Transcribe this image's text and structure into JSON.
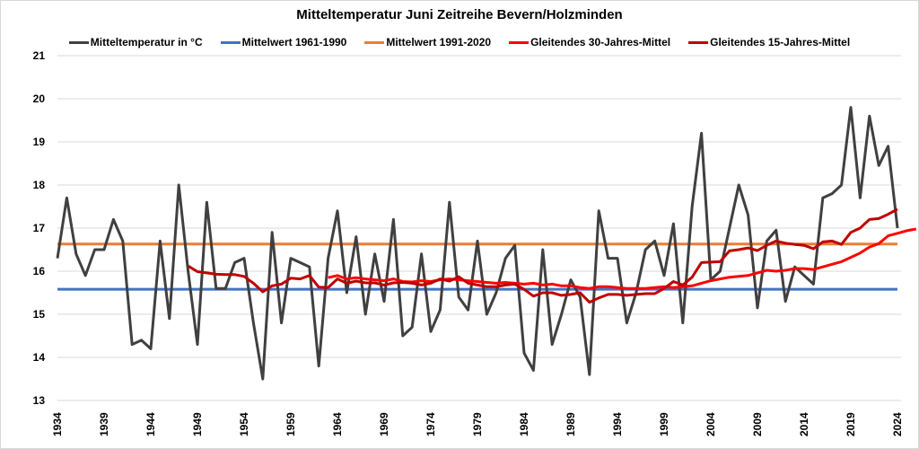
{
  "chart_data": {
    "type": "line",
    "title": "Mitteltemperatur Juni Zeitreihe Bevern/Holzminden",
    "xlabel": "",
    "ylabel": "",
    "ylim": [
      13,
      21
    ],
    "xlim": [
      1934,
      2024
    ],
    "y_ticks": [
      13,
      14,
      15,
      16,
      17,
      18,
      19,
      20,
      21
    ],
    "x_ticks": [
      1934,
      1939,
      1944,
      1949,
      1954,
      1959,
      1964,
      1969,
      1974,
      1979,
      1984,
      1989,
      1994,
      1999,
      2004,
      2009,
      2014,
      2019,
      2024
    ],
    "grid": true,
    "legend_position": "top",
    "series": [
      {
        "name": "Mitteltemperatur in °C",
        "color": "#404040",
        "x_start": 1934,
        "values": [
          16.3,
          17.7,
          16.4,
          15.9,
          16.5,
          16.5,
          17.2,
          16.7,
          14.3,
          14.4,
          14.2,
          16.7,
          14.9,
          18.0,
          16.0,
          14.3,
          17.6,
          15.6,
          15.6,
          16.2,
          16.3,
          14.8,
          13.5,
          16.9,
          14.8,
          16.3,
          16.2,
          16.1,
          13.8,
          16.3,
          17.4,
          15.5,
          16.8,
          15.0,
          16.4,
          15.3,
          17.2,
          14.5,
          14.7,
          16.4,
          14.6,
          15.1,
          17.6,
          15.4,
          15.1,
          16.7,
          15.0,
          15.5,
          16.3,
          16.6,
          14.1,
          13.7,
          16.5,
          14.3,
          15.0,
          15.8,
          15.4,
          13.6,
          17.4,
          16.3,
          16.3,
          14.8,
          15.5,
          16.5,
          16.7,
          15.9,
          17.1,
          14.8,
          17.5,
          19.2,
          15.8,
          16.0,
          17.0,
          18.0,
          17.3,
          15.15,
          16.7,
          16.95,
          15.3,
          16.1,
          15.9,
          15.7,
          17.7,
          17.8,
          18.0,
          19.8,
          17.7,
          19.6,
          18.45,
          18.9,
          17.0
        ]
      },
      {
        "name": "Mittelwert 1961-1990",
        "color": "#4472c4",
        "constant": 15.58
      },
      {
        "name": "Mittelwert 1991-2020",
        "color": "#ed7d31",
        "constant": 16.63
      },
      {
        "name": "Gleitendes 30-Jahres-Mittel",
        "color": "#ff0000",
        "x_start": 1963,
        "values": [
          15.85,
          15.9,
          15.82,
          15.85,
          15.82,
          15.8,
          15.78,
          15.82,
          15.76,
          15.75,
          15.78,
          15.76,
          15.8,
          15.82,
          15.8,
          15.78,
          15.76,
          15.74,
          15.72,
          15.74,
          15.72,
          15.7,
          15.72,
          15.68,
          15.7,
          15.66,
          15.66,
          15.62,
          15.6,
          15.64,
          15.64,
          15.62,
          15.6,
          15.6,
          15.6,
          15.62,
          15.64,
          15.62,
          15.64,
          15.66,
          15.72,
          15.78,
          15.82,
          15.86,
          15.88,
          15.9,
          15.96,
          16.02,
          16.0,
          16.02,
          16.06,
          16.06,
          16.04,
          16.1,
          16.16,
          16.22,
          16.32,
          16.42,
          16.56,
          16.64,
          16.82,
          16.88,
          16.94,
          16.98
        ]
      },
      {
        "name": "Gleitendes 15-Jahres-Mittel",
        "color": "#c00000",
        "x_start": 1948,
        "values": [
          16.12,
          15.99,
          15.96,
          15.93,
          15.92,
          15.92,
          15.88,
          15.72,
          15.52,
          15.66,
          15.7,
          15.84,
          15.82,
          15.9,
          15.63,
          15.62,
          15.82,
          15.72,
          15.77,
          15.73,
          15.73,
          15.68,
          15.73,
          15.74,
          15.72,
          15.68,
          15.72,
          15.82,
          15.77,
          15.87,
          15.72,
          15.68,
          15.64,
          15.64,
          15.68,
          15.7,
          15.58,
          15.42,
          15.5,
          15.5,
          15.44,
          15.46,
          15.5,
          15.28,
          15.38,
          15.46,
          15.46,
          15.44,
          15.46,
          15.48,
          15.48,
          15.6,
          15.76,
          15.68,
          15.86,
          16.2,
          16.21,
          16.22,
          16.47,
          16.5,
          16.54,
          16.48,
          16.6,
          16.7,
          16.65,
          16.62,
          16.6,
          16.52,
          16.68,
          16.7,
          16.62,
          16.9,
          17.0,
          17.2,
          17.22,
          17.32,
          17.44
        ]
      }
    ]
  }
}
